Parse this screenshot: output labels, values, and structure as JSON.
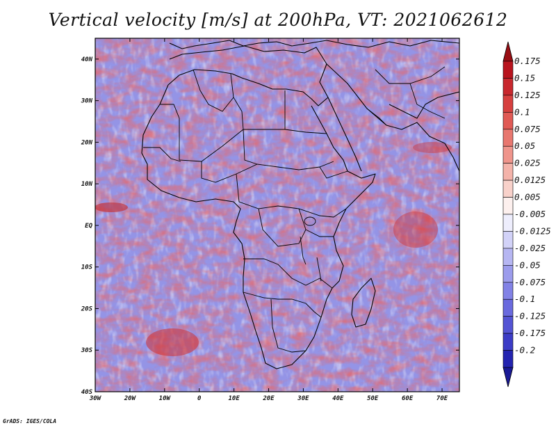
{
  "title": "Vertical velocity [m/s] at 200hPa, VT: 2021062612",
  "credit": "GrADS: IGES/COLA",
  "map": {
    "lon_range": [
      -30,
      75
    ],
    "lat_range": [
      -40,
      45
    ],
    "lon_ticks": [
      "30W",
      "20W",
      "10W",
      "0",
      "10E",
      "20E",
      "30E",
      "40E",
      "50E",
      "60E",
      "70E"
    ],
    "lat_ticks": [
      "40S",
      "30S",
      "20S",
      "10S",
      "EQ",
      "10N",
      "20N",
      "30N",
      "40N"
    ],
    "region": "Africa"
  },
  "colorbar": {
    "labels": [
      "0.175",
      "0.15",
      "0.125",
      "0.1",
      "0.075",
      "0.05",
      "0.025",
      "0.0125",
      "0.005",
      "-0.005",
      "-0.0125",
      "-0.025",
      "-0.05",
      "-0.075",
      "-0.1",
      "-0.125",
      "-0.175",
      "-0.2"
    ],
    "colors": [
      "#b8141e",
      "#c8282e",
      "#d6403f",
      "#e05a55",
      "#e8776f",
      "#ef958c",
      "#f4b3aa",
      "#f8d1ca",
      "#fdf0ee",
      "#eeeefd",
      "#d2d2f8",
      "#b6b6f2",
      "#9c9cec",
      "#8282e6",
      "#6a6ade",
      "#5454d4",
      "#3c3cc6",
      "#2424b0"
    ],
    "top_arrow_color": "#9a0e14",
    "bottom_arrow_color": "#1a1a96"
  }
}
